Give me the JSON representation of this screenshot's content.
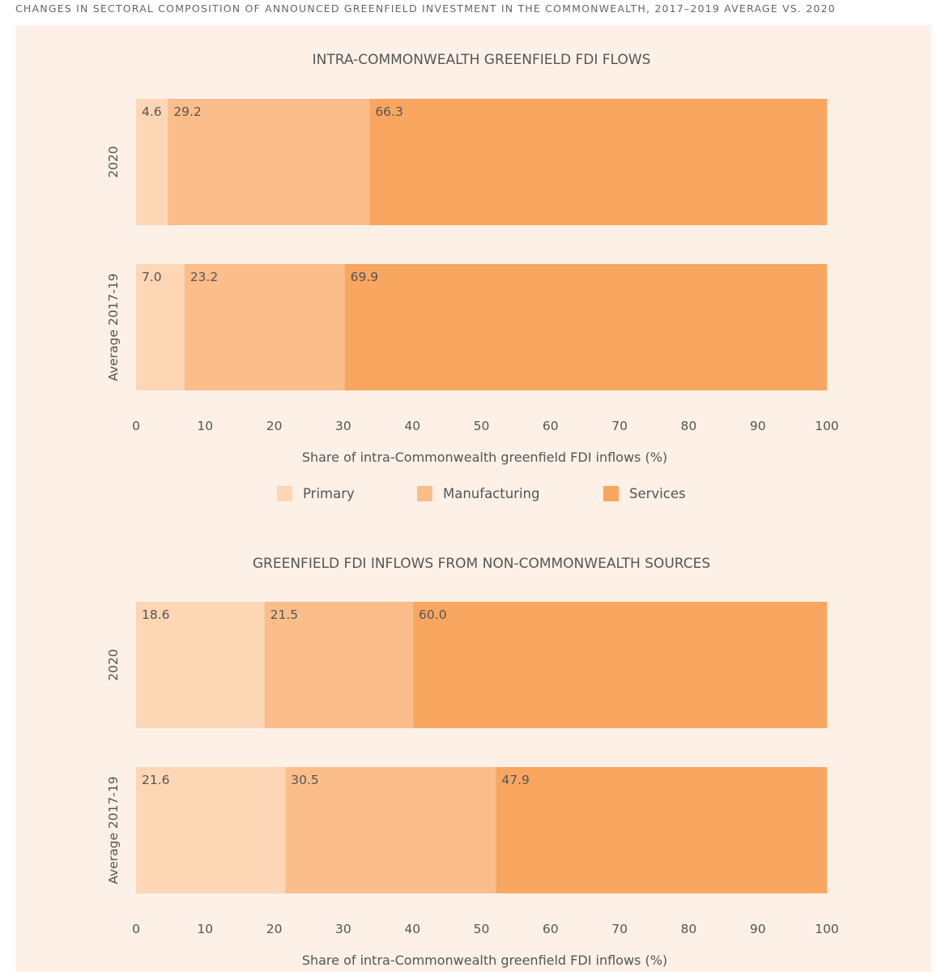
{
  "figure_title": "CHANGES IN SECTORAL COMPOSITION OF ANNOUNCED GREENFIELD INVESTMENT IN THE COMMONWEALTH, 2017–2019 AVERAGE VS. 2020",
  "colors": {
    "background": "#fdf0e7",
    "Primary": "#fdd6b5",
    "Manufacturing": "#fbbd8a",
    "Services": "#f8a660"
  },
  "legend": [
    "Primary",
    "Manufacturing",
    "Services"
  ],
  "chart_data": [
    {
      "type": "bar",
      "orientation": "horizontal-stacked",
      "title": "INTRA-COMMONWEALTH GREENFIELD FDI FLOWS",
      "categories": [
        "2020",
        "Average 2017-19"
      ],
      "series": [
        {
          "name": "Primary",
          "values": [
            4.6,
            7.0
          ]
        },
        {
          "name": "Manufacturing",
          "values": [
            29.2,
            23.2
          ]
        },
        {
          "name": "Services",
          "values": [
            66.3,
            69.9
          ]
        }
      ],
      "xlabel": "Share of intra-Commonwealth greenfield FDI inflows (%)",
      "xlim": [
        0,
        100
      ],
      "xticks": [
        "0",
        "10",
        "20",
        "30",
        "40",
        "50",
        "60",
        "70",
        "80",
        "90",
        "100"
      ],
      "legend_position": "bottom"
    },
    {
      "type": "bar",
      "orientation": "horizontal-stacked",
      "title": "GREENFIELD FDI INFLOWS FROM NON-COMMONWEALTH SOURCES",
      "categories": [
        "2020",
        "Average 2017-19"
      ],
      "series": [
        {
          "name": "Primary",
          "values": [
            18.6,
            21.6
          ]
        },
        {
          "name": "Manufacturing",
          "values": [
            21.5,
            30.5
          ]
        },
        {
          "name": "Services",
          "values": [
            60.0,
            47.9
          ]
        }
      ],
      "xlabel": "Share of intra-Commonwealth greenfield FDI inflows (%)",
      "xlim": [
        0,
        100
      ],
      "xticks": [
        "0",
        "10",
        "20",
        "30",
        "40",
        "50",
        "60",
        "70",
        "80",
        "90",
        "100"
      ]
    }
  ]
}
